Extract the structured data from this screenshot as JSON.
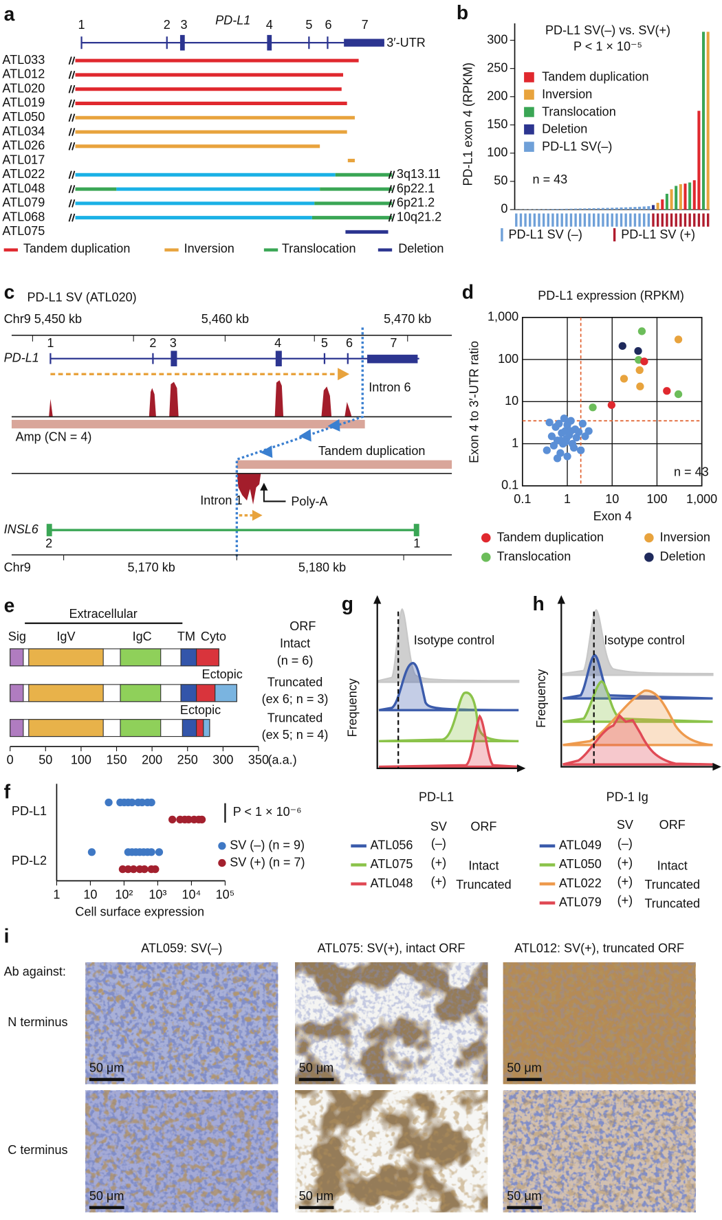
{
  "panels": {
    "a": {
      "label": "a",
      "gene": "PD-L1",
      "exons": [
        "1",
        "2",
        "3",
        "4",
        "5",
        "6",
        "7"
      ],
      "utr": "3′-UTR",
      "samples": [
        "ATL033",
        "ATL012",
        "ATL020",
        "ATL019",
        "ATL050",
        "ATL034",
        "ATL026",
        "ATL017",
        "ATL022",
        "ATL048",
        "ATL079",
        "ATL068",
        "ATL075"
      ],
      "loci": [
        "3q13.11",
        "6p22.1",
        "6p21.2",
        "10q21.2"
      ],
      "legend": [
        "Tandem duplication",
        "Inversion",
        "Translocation",
        "Deletion"
      ]
    },
    "c": {
      "label": "c",
      "title": "PD-L1 SV (ATL020)",
      "top_axis": [
        "Chr9 5,450 kb",
        "5,460 kb",
        "5,470 kb"
      ],
      "gene": "PD-L1",
      "exons": [
        "1",
        "2",
        "3",
        "4",
        "5",
        "6",
        "7"
      ],
      "intron6": "Intron 6",
      "amp": "Amp (CN = 4)",
      "duplication": "Tandem duplication",
      "intron1": "Intron 1",
      "polya": "Poly-A",
      "partner": "INSL6",
      "partner_exons": [
        "2",
        "1"
      ],
      "bottom_axis": [
        "Chr9",
        "5,170 kb",
        "5,180 kb"
      ]
    },
    "e": {
      "label": "e",
      "region": "Extracellular",
      "domains": [
        "Sig",
        "IgV",
        "IgC",
        "TM",
        "Cyto"
      ],
      "orf_header": "ORF",
      "rows": [
        {
          "orf": "Intact",
          "n": "(n = 6)"
        },
        {
          "ectopic": "Ectopic",
          "orf": "Truncated",
          "n": "(ex 6; n = 3)"
        },
        {
          "ectopic": "Ectopic",
          "orf": "Truncated",
          "n": "(ex 5; n = 4)"
        }
      ],
      "axis_ticks": [
        0,
        50,
        100,
        150,
        200,
        250,
        300,
        350
      ],
      "unit": "(a.a.)"
    },
    "g": {
      "label": "g",
      "annotation": "Isotype control",
      "ylabel": "Frequency",
      "xlabel": "PD-L1",
      "header": [
        "SV",
        "ORF"
      ],
      "rows": [
        {
          "sample": "ATL056",
          "sv": "(–)"
        },
        {
          "sample": "ATL075",
          "sv": "(+)",
          "orf": "Intact"
        },
        {
          "sample": "ATL048",
          "sv": "(+)",
          "orf": "Truncated"
        }
      ]
    },
    "h": {
      "label": "h",
      "annotation": "Isotype control",
      "ylabel": "Frequency",
      "xlabel": "PD-1 Ig",
      "header": [
        "SV",
        "ORF"
      ],
      "rows": [
        {
          "sample": "ATL049",
          "sv": "(–)"
        },
        {
          "sample": "ATL050",
          "sv": "(+)",
          "orf": "Intact"
        },
        {
          "sample": "ATL022",
          "sv": "(+)",
          "orf": "Truncated"
        },
        {
          "sample": "ATL079",
          "sv": "(+)",
          "orf": "Truncated"
        }
      ]
    },
    "i": {
      "label": "i",
      "columns": [
        "ATL059: SV(–)",
        "ATL075: SV(+), intact ORF",
        "ATL012: SV(+), truncated ORF"
      ],
      "row_header": "Ab against:",
      "rows": [
        "N terminus",
        "C terminus"
      ],
      "scale": "50 μm"
    }
  },
  "chart_data": [
    {
      "type": "bar",
      "panel": "b",
      "title": "PD-L1 SV(–) vs. SV(+)",
      "subtitle": "P < 1 × 10⁻⁵",
      "ylabel": "PD-L1 exon 4 (RPKM)",
      "annotation": "n = 43",
      "ylim": [
        0,
        330
      ],
      "yticks": [
        0,
        50,
        100,
        150,
        200,
        250,
        300
      ],
      "values": [
        0.2,
        0.3,
        0.4,
        0.5,
        0.6,
        0.7,
        0.8,
        0.9,
        1,
        1.1,
        1.2,
        1.4,
        1.5,
        1.7,
        1.9,
        2,
        2.2,
        2.4,
        2.6,
        2.8,
        3,
        3.2,
        3.5,
        3.8,
        4,
        4.3,
        4.6,
        5,
        5.5,
        6,
        8,
        12,
        18,
        28,
        36,
        42,
        45,
        46,
        48,
        52,
        175,
        315,
        315
      ],
      "colors": [
        "#6fa0d8",
        "#6fa0d8",
        "#6fa0d8",
        "#6fa0d8",
        "#6fa0d8",
        "#6fa0d8",
        "#6fa0d8",
        "#6fa0d8",
        "#6fa0d8",
        "#6fa0d8",
        "#6fa0d8",
        "#6fa0d8",
        "#6fa0d8",
        "#6fa0d8",
        "#6fa0d8",
        "#6fa0d8",
        "#6fa0d8",
        "#6fa0d8",
        "#6fa0d8",
        "#6fa0d8",
        "#6fa0d8",
        "#6fa0d8",
        "#6fa0d8",
        "#6fa0d8",
        "#6fa0d8",
        "#6fa0d8",
        "#6fa0d8",
        "#6fa0d8",
        "#6fa0d8",
        "#6fa0d8",
        "#2c3590",
        "#e8a33d",
        "#e0282e",
        "#3aa655",
        "#e8a33d",
        "#3aa655",
        "#e8a33d",
        "#e0282e",
        "#3aa655",
        "#e0282e",
        "#e0282e",
        "#3aa655",
        "#e8a33d"
      ],
      "legend": [
        {
          "name": "Tandem duplication",
          "color": "#e0282e"
        },
        {
          "name": "Inversion",
          "color": "#e8a33d"
        },
        {
          "name": "Translocation",
          "color": "#3aa655"
        },
        {
          "name": "Deletion",
          "color": "#2c3590"
        },
        {
          "name": "PD-L1 SV(–)",
          "color": "#6fa0d8"
        }
      ],
      "groups": [
        {
          "name": "PD-L1 SV (–)",
          "color": "#6fa0d8"
        },
        {
          "name": "PD-L1 SV (+)",
          "color": "#b01c2e"
        }
      ]
    },
    {
      "type": "scatter",
      "panel": "d",
      "title": "PD-L1 expression (RPKM)",
      "xlabel": "Exon 4",
      "ylabel": "Exon 4 to 3′-UTR ratio",
      "annotation": "n = 43",
      "log_x": true,
      "log_y": true,
      "grid": true,
      "xlim": [
        0.1,
        1000
      ],
      "ylim": [
        0.1,
        1000
      ],
      "xticks": [
        0.1,
        1,
        10,
        100,
        {
          "value": 1000,
          "label": "1,000"
        }
      ],
      "yticks": [
        0.1,
        1,
        10,
        100,
        {
          "value": 1000,
          "label": "1,000"
        }
      ],
      "thresholds": {
        "x": 2,
        "y": 3.5,
        "color": "#e0602e"
      },
      "series": [
        {
          "name": "Tandem duplication",
          "color": "#e0282e",
          "x": [
            52,
            9.7,
            166
          ],
          "values": [
            90,
            8.3,
            18
          ]
        },
        {
          "name": "Inversion",
          "color": "#e8a33d",
          "x": [
            300,
            18.4,
            41,
            42
          ],
          "values": [
            300,
            35,
            56,
            23
          ]
        },
        {
          "name": "Translocation",
          "color": "#6cbd5a",
          "x": [
            46,
            39,
            3.7,
            300
          ],
          "values": [
            470,
            98,
            7.3,
            15
          ]
        },
        {
          "name": "Deletion",
          "color": "#1f2a5c",
          "x": [
            17,
            38
          ],
          "values": [
            210,
            160
          ]
        },
        {
          "color": "#5b8fd6",
          "x": [
            0.35,
            0.45,
            0.5,
            0.55,
            0.6,
            0.65,
            0.7,
            0.75,
            0.8,
            0.85,
            0.9,
            0.95,
            1,
            1,
            1.1,
            1.2,
            1.3,
            1.4,
            1.5,
            1.6,
            1.8,
            2,
            2.2,
            2.5,
            3,
            0.4,
            0.6,
            0.9,
            1.2,
            0.7
          ],
          "values": [
            0.7,
            1.5,
            0.9,
            2.5,
            1.2,
            3,
            0.6,
            1.8,
            1,
            4,
            2,
            1.3,
            0.5,
            2.8,
            1.6,
            3.5,
            1,
            0.8,
            2.2,
            1.4,
            1.9,
            0.7,
            3,
            1.5,
            2,
            3.2,
            0.45,
            1.1,
            2,
            1.2
          ]
        }
      ]
    },
    {
      "type": "dot",
      "panel": "f",
      "xlabel": "Cell surface expression",
      "annotation": "P < 1 × 10⁻⁶",
      "log_x": true,
      "categories": [
        "PD-L1",
        "PD-L2"
      ],
      "xlim": [
        1,
        100000
      ],
      "xticks": [
        1,
        10,
        {
          "value": 100,
          "label": "10²"
        },
        {
          "value": 1000,
          "label": "10³"
        },
        {
          "value": 10000,
          "label": "10⁴"
        },
        {
          "value": 100000,
          "label": "10⁵"
        }
      ],
      "series": [
        {
          "name": "SV (–) (n = 9)",
          "color": "#3f78c4",
          "values": [
            [
              35,
              77,
              101,
              132,
              172,
              262,
              343,
              497,
              647
            ],
            [
              11,
              132,
              172,
              224,
              292,
              381,
              497,
              647,
              1100
            ]
          ]
        },
        {
          "name": "SV (+) (n = 7)",
          "color": "#a3202e",
          "values": [
            [
              2710,
              4610,
              6340,
              8260,
              11980,
              16500,
              20370
            ],
            [
              91,
              132,
              191,
              292,
              402,
              647,
              844
            ]
          ]
        }
      ]
    }
  ]
}
